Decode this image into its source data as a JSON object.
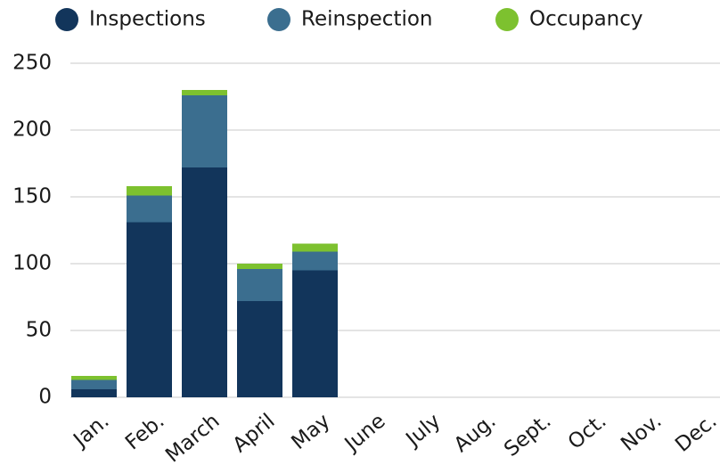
{
  "chart_data": {
    "type": "bar",
    "stacked": true,
    "categories": [
      "Jan.",
      "Feb.",
      "March",
      "April",
      "May",
      "June",
      "July",
      "Aug.",
      "Sept.",
      "Oct.",
      "Nov.",
      "Dec."
    ],
    "series": [
      {
        "name": "Inspections",
        "color": "#12355b",
        "values": [
          6,
          131,
          172,
          72,
          95,
          null,
          null,
          null,
          null,
          null,
          null,
          null
        ]
      },
      {
        "name": "Reinspection",
        "color": "#3b6e8f",
        "values": [
          7,
          20,
          54,
          24,
          14,
          null,
          null,
          null,
          null,
          null,
          null,
          null
        ]
      },
      {
        "name": "Occupancy",
        "color": "#7dc12f",
        "values": [
          3,
          7,
          4,
          4,
          6,
          null,
          null,
          null,
          null,
          null,
          null,
          null
        ]
      }
    ],
    "ylim": [
      0,
      250
    ],
    "yticks": [
      0,
      50,
      100,
      150,
      200,
      250
    ],
    "grid": true,
    "legend": "top"
  }
}
